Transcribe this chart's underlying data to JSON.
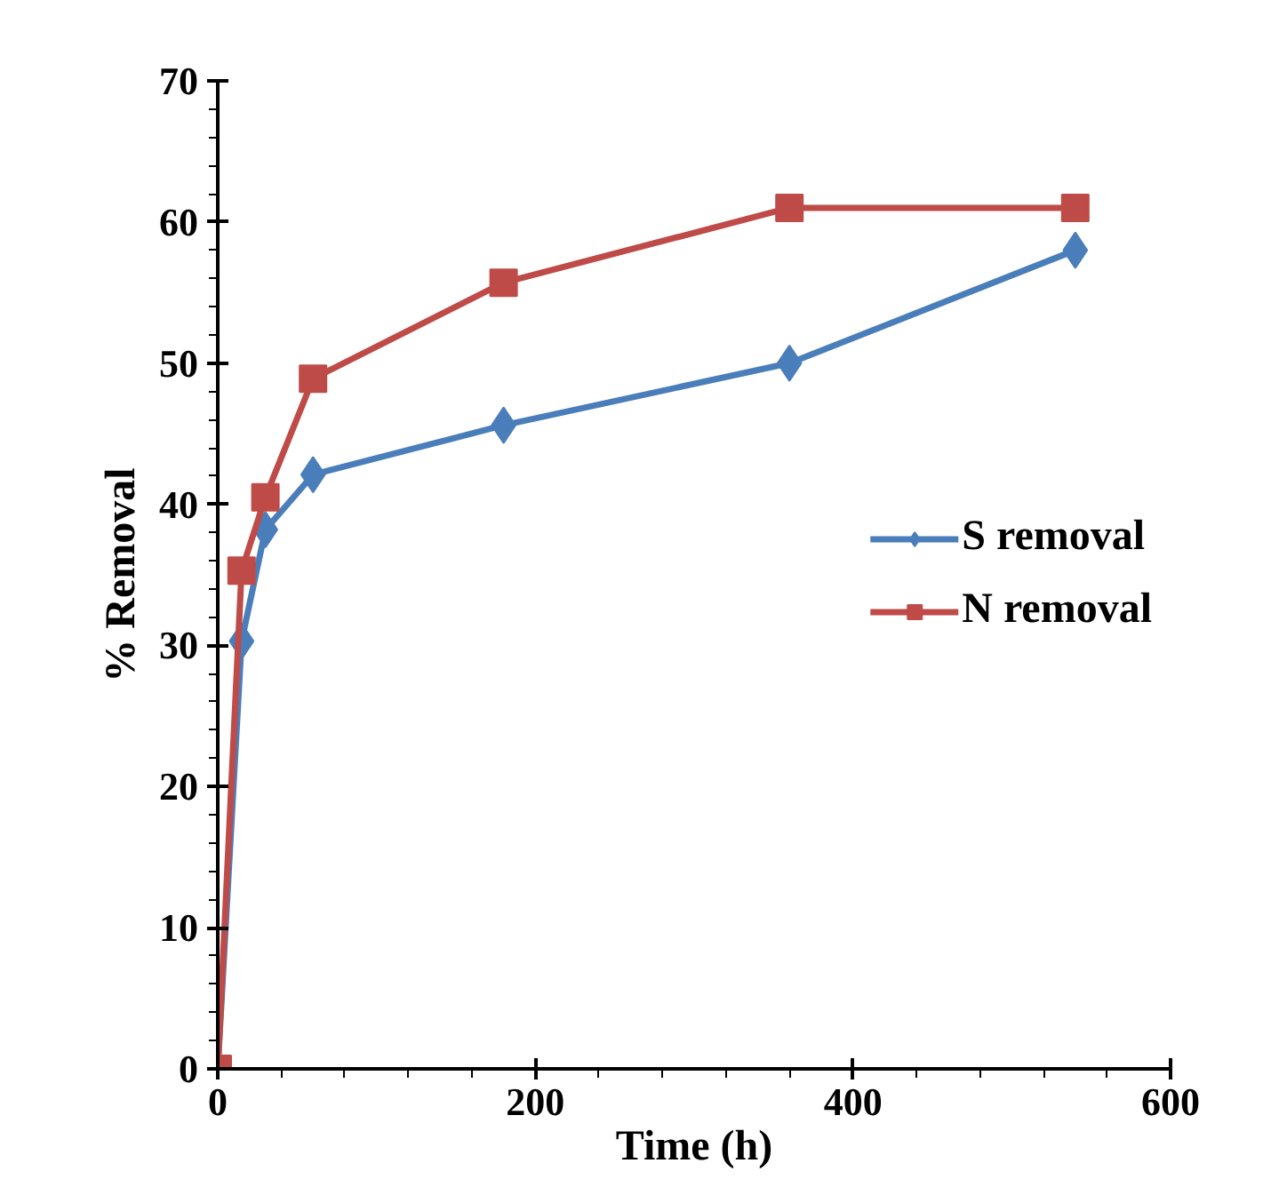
{
  "chart_data": {
    "type": "line",
    "xlabel": "Time (h)",
    "ylabel": "% Removal",
    "x": [
      0,
      15,
      30,
      60,
      180,
      360,
      540
    ],
    "series": [
      {
        "name": "S removal",
        "color": "#4a7ebb",
        "marker": "diamond",
        "values": [
          0,
          30.3,
          38.2,
          42.1,
          45.6,
          50,
          58
        ]
      },
      {
        "name": "N removal",
        "color": "#be4b48",
        "marker": "square",
        "values": [
          0,
          35.3,
          40.5,
          48.9,
          55.7,
          61,
          61
        ]
      }
    ],
    "xlim": [
      0,
      600
    ],
    "xticks": [
      0,
      200,
      400,
      600
    ],
    "ylim": [
      0,
      70
    ],
    "yticks": [
      0,
      10,
      20,
      30,
      40,
      50,
      60,
      70
    ],
    "grid": false,
    "legend": "right",
    "line_style": "solid"
  }
}
